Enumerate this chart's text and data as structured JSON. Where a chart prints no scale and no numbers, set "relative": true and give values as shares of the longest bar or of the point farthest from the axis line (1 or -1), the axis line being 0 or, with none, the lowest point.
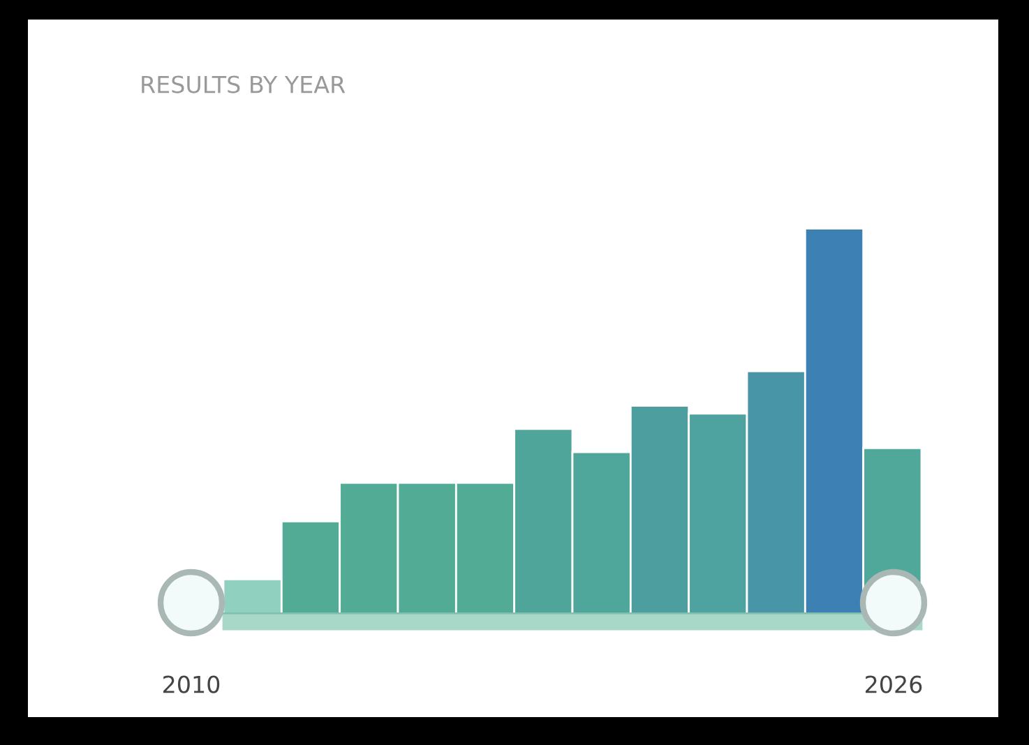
{
  "chart_data": {
    "type": "bar",
    "title": "RESULTS BY YEAR",
    "relative": true,
    "categories": [
      null,
      null,
      null,
      null,
      null,
      null,
      null,
      null,
      null,
      null,
      null,
      null
    ],
    "values": [
      0.09,
      0.24,
      0.34,
      0.34,
      0.34,
      0.48,
      0.42,
      0.54,
      0.52,
      0.63,
      1,
      0.43
    ],
    "colors": [
      "#8fd0bf",
      "#52ab94",
      "#52ab94",
      "#52ab94",
      "#52ab94",
      "#4fa59a",
      "#4fa69a",
      "#4c9e9f",
      "#4ea2a0",
      "#4895a8",
      "#3c80b4",
      "#4fa89a"
    ],
    "annotations": [
      "2010",
      "2026"
    ],
    "grid": false,
    "legend": false
  }
}
